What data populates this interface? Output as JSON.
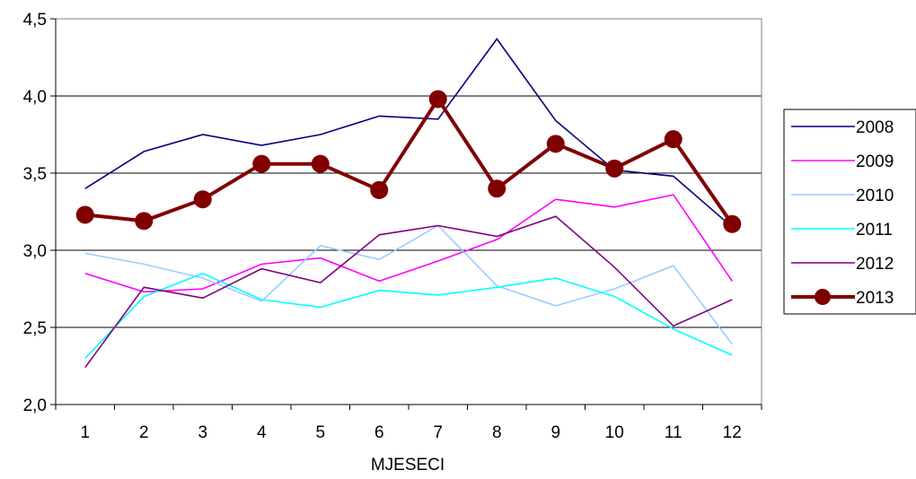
{
  "chart_data": {
    "type": "line",
    "title": "",
    "xlabel": "MJESECI",
    "ylabel": "",
    "categories": [
      "1",
      "2",
      "3",
      "4",
      "5",
      "6",
      "7",
      "8",
      "9",
      "10",
      "11",
      "12"
    ],
    "ylim": [
      2.0,
      4.5
    ],
    "yticks": [
      {
        "value": 2.0,
        "label": "2,0"
      },
      {
        "value": 2.5,
        "label": "2,5"
      },
      {
        "value": 3.0,
        "label": "3,0"
      },
      {
        "value": 3.5,
        "label": "3,5"
      },
      {
        "value": 4.0,
        "label": "4,0"
      },
      {
        "value": 4.5,
        "label": "4,5"
      }
    ],
    "grid": true,
    "legend": "right",
    "series": [
      {
        "name": "2008",
        "color": "#000080",
        "markers": false,
        "values": [
          3.4,
          3.64,
          3.75,
          3.68,
          3.75,
          3.87,
          3.85,
          4.37,
          3.84,
          3.52,
          3.48,
          3.15
        ]
      },
      {
        "name": "2009",
        "color": "#ff00ff",
        "markers": false,
        "values": [
          2.85,
          2.73,
          2.75,
          2.91,
          2.95,
          2.8,
          2.93,
          3.07,
          3.33,
          3.28,
          3.36,
          2.8
        ]
      },
      {
        "name": "2010",
        "color": "#99ccff",
        "markers": false,
        "values": [
          2.98,
          2.91,
          2.82,
          2.67,
          3.03,
          2.94,
          3.16,
          2.77,
          2.64,
          2.75,
          2.9,
          2.39
        ]
      },
      {
        "name": "2011",
        "color": "#00ffff",
        "markers": false,
        "values": [
          2.3,
          2.7,
          2.85,
          2.68,
          2.63,
          2.74,
          2.71,
          2.76,
          2.82,
          2.7,
          2.49,
          2.32
        ]
      },
      {
        "name": "2012",
        "color": "#800080",
        "markers": false,
        "values": [
          2.24,
          2.76,
          2.69,
          2.88,
          2.79,
          3.1,
          3.16,
          3.09,
          3.22,
          2.89,
          2.51,
          2.68
        ]
      },
      {
        "name": "2013",
        "color": "#800000",
        "markers": true,
        "values": [
          3.23,
          3.19,
          3.33,
          3.56,
          3.56,
          3.39,
          3.98,
          3.4,
          3.69,
          3.53,
          3.72,
          3.17
        ]
      }
    ]
  }
}
